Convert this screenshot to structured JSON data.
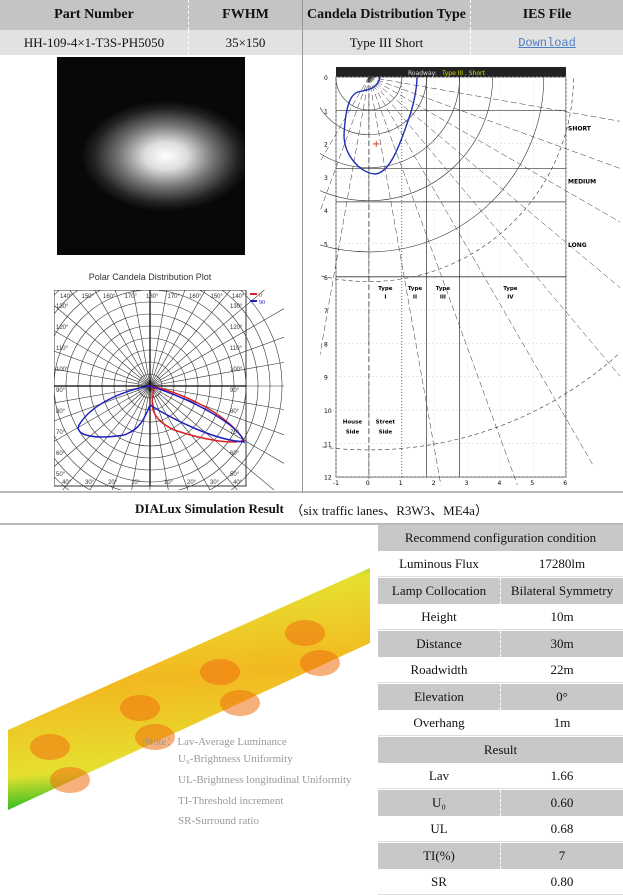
{
  "header": {
    "part_number": "Part Number",
    "fwhm": "FWHM",
    "candela_type": "Candela Distribution Type",
    "ies_file": "IES File"
  },
  "row": {
    "part_number": "HH-109-4×1-T3S-PH5050",
    "fwhm": "35×150",
    "candela_type": "Type III Short",
    "ies_link": "Download"
  },
  "polar": {
    "title": "Polar Candela Distribution Plot",
    "legend": [
      "0",
      "90"
    ],
    "colors": [
      "#e02020",
      "#2020c0"
    ],
    "angles_top": [
      "140°",
      "150°",
      "160°",
      "170°",
      "180°",
      "170°",
      "160°",
      "150°",
      "140°"
    ],
    "angles_left": [
      "130°",
      "120°",
      "110°",
      "100°",
      "90°",
      "80°",
      "70°",
      "60°",
      "50°"
    ],
    "angles_bottom": [
      "40°",
      "30°",
      "20°",
      "10°",
      "10°",
      "20°",
      "30°",
      "40°"
    ]
  },
  "roadway": {
    "title_prefix": "Roadway:",
    "title_type": "Type III , Short",
    "y_ticks": [
      "0",
      "1",
      "2",
      "3",
      "4",
      "5",
      "6",
      "7",
      "8",
      "9",
      "10",
      "11",
      "12"
    ],
    "x_ticks": [
      "-1",
      "0",
      "1",
      "2",
      "3",
      "4",
      "5",
      "6"
    ],
    "zones": [
      "SHORT",
      "MEDIUM",
      "LONG"
    ],
    "types": [
      "Type I",
      "Type II",
      "Type III",
      "Type IV"
    ],
    "sides": [
      "House Side",
      "Street Side"
    ]
  },
  "simulation": {
    "title": "DIALux Simulation Result",
    "subtitle": "（six traffic lanes、R3W3、ME4a）"
  },
  "notes": [
    "Note：Lav-Average Luminance",
    "U₀-Brightness Uniformity",
    "UL-Brightness longitudinal Uniformity",
    "TI-Threshold increment",
    "SR-Surround ratio"
  ],
  "config": {
    "header": "Recommend configuration condition",
    "rows": [
      [
        "Luminous Flux",
        "17280lm"
      ],
      [
        "Lamp Collocation",
        "Bilateral Symmetry"
      ],
      [
        "Height",
        "10m"
      ],
      [
        "Distance",
        "30m"
      ],
      [
        "Roadwidth",
        "22m"
      ],
      [
        "Elevation",
        "0°"
      ],
      [
        "Overhang",
        "1m"
      ]
    ],
    "result_header": "Result",
    "results": [
      [
        "Lav",
        "1.66"
      ],
      [
        "U₀",
        "0.60"
      ],
      [
        "UL",
        "0.68"
      ],
      [
        "TI(%)",
        "7"
      ],
      [
        "SR",
        "0.80"
      ]
    ]
  }
}
